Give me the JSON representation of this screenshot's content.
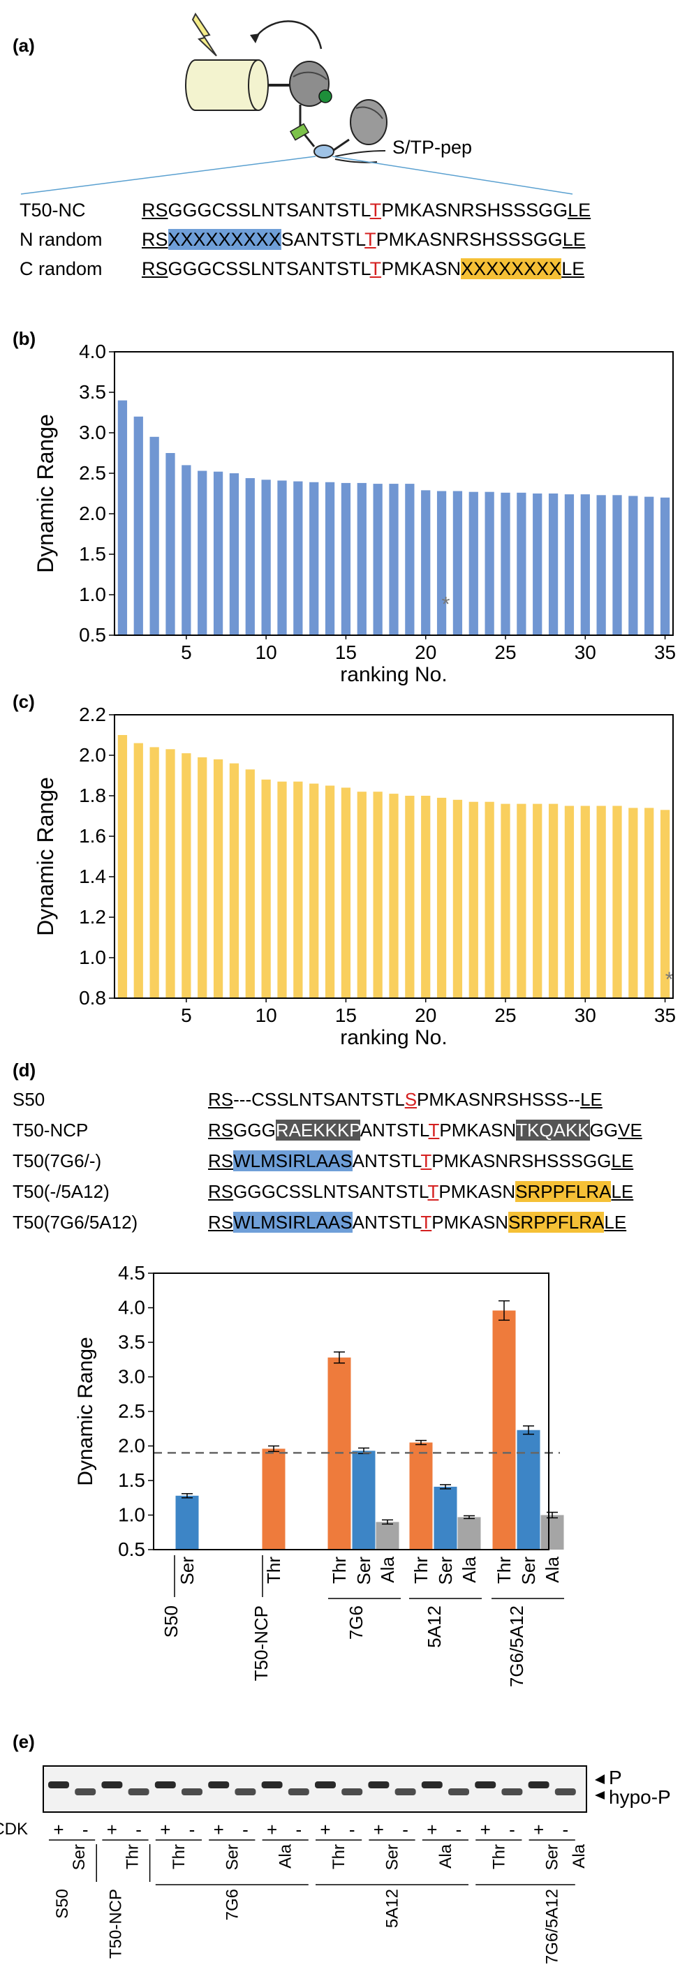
{
  "panel_a": {
    "label": "(a)",
    "pointer_label": "S/TP-pep",
    "rows": [
      {
        "name": "T50-NC",
        "segments": [
          {
            "t": "RS",
            "s": "ul"
          },
          {
            "t": "GGGCSSLNTSANTSTL",
            "s": ""
          },
          {
            "t": "T",
            "s": "red"
          },
          {
            "t": "PMKASNRSHSSSGG",
            "s": ""
          },
          {
            "t": "LE",
            "s": "ul"
          }
        ]
      },
      {
        "name": "N random",
        "segments": [
          {
            "t": "RS",
            "s": "ul"
          },
          {
            "t": "XXXXXXXXX",
            "s": "hl-blue"
          },
          {
            "t": "SANTSTL",
            "s": ""
          },
          {
            "t": "T",
            "s": "red"
          },
          {
            "t": "PMKASNRSHSSSGG",
            "s": ""
          },
          {
            "t": "LE",
            "s": "ul"
          }
        ]
      },
      {
        "name": "C random",
        "segments": [
          {
            "t": "RS",
            "s": "ul"
          },
          {
            "t": "GGGCSSLNTSANTSTL",
            "s": ""
          },
          {
            "t": "T",
            "s": "red"
          },
          {
            "t": "PMKASN",
            "s": ""
          },
          {
            "t": "XXXXXXXX",
            "s": "hl-yellow"
          },
          {
            "t": "LE",
            "s": "ul"
          }
        ]
      }
    ]
  },
  "panel_b": {
    "label": "(b)"
  },
  "panel_c": {
    "label": "(c)"
  },
  "panel_d": {
    "label": "(d)",
    "rows": [
      {
        "name": "S50",
        "segments": [
          {
            "t": "RS",
            "s": "ul"
          },
          {
            "t": "---CSSLNTSANTSTL",
            "s": ""
          },
          {
            "t": "S",
            "s": "red"
          },
          {
            "t": "PMKASNRSHSSS--",
            "s": ""
          },
          {
            "t": "LE",
            "s": "ul"
          }
        ]
      },
      {
        "name": "T50-NCP",
        "segments": [
          {
            "t": "RS",
            "s": "ul"
          },
          {
            "t": "GGG",
            "s": ""
          },
          {
            "t": "RAEKKKP",
            "s": "hl-dark"
          },
          {
            "t": "ANTSTL",
            "s": ""
          },
          {
            "t": "T",
            "s": "red"
          },
          {
            "t": "PMKASN",
            "s": ""
          },
          {
            "t": "TKQAKK",
            "s": "hl-dark"
          },
          {
            "t": "GG",
            "s": ""
          },
          {
            "t": "VE",
            "s": "ul"
          }
        ]
      },
      {
        "name": "T50(7G6/-)",
        "segments": [
          {
            "t": "RS",
            "s": "ul"
          },
          {
            "t": "WLMSIRLAAS",
            "s": "hl-blue"
          },
          {
            "t": "ANTSTL",
            "s": ""
          },
          {
            "t": "T",
            "s": "red"
          },
          {
            "t": "PMKASNRSHSSSGG",
            "s": ""
          },
          {
            "t": "LE",
            "s": "ul"
          }
        ]
      },
      {
        "name": "T50(-/5A12)",
        "segments": [
          {
            "t": "RS",
            "s": "ul"
          },
          {
            "t": "GGGCSSLNTSANTSTL",
            "s": ""
          },
          {
            "t": "T",
            "s": "red"
          },
          {
            "t": "PMKASN",
            "s": ""
          },
          {
            "t": "SRPPFLRA",
            "s": "hl-yellow"
          },
          {
            "t": "LE",
            "s": "ul"
          }
        ]
      },
      {
        "name": "T50(7G6/5A12)",
        "segments": [
          {
            "t": "RS",
            "s": "ul"
          },
          {
            "t": "WLMSIRLAAS",
            "s": "hl-blue"
          },
          {
            "t": "ANTSTL",
            "s": ""
          },
          {
            "t": "T",
            "s": "red"
          },
          {
            "t": "PMKASN",
            "s": ""
          },
          {
            "t": "SRPPFLRA",
            "s": "hl-yellow"
          },
          {
            "t": "LE",
            "s": "ul"
          }
        ]
      }
    ]
  },
  "panel_e": {
    "label": "(e)",
    "band_labels": [
      "P",
      "hypo-P"
    ],
    "cdk_label": "CDK",
    "lanes": [
      "+",
      "-",
      "+",
      "-",
      "+",
      "-",
      "+",
      "-",
      "+",
      "-",
      "+",
      "-",
      "+",
      "-",
      "+",
      "-",
      "+",
      "-",
      "+",
      "-"
    ],
    "residue_labels": [
      "Ser",
      "Thr",
      "Thr",
      "Ser",
      "Ala",
      "Thr",
      "Ser",
      "Ala",
      "Thr",
      "Ser",
      "Ala"
    ],
    "group_labels": [
      "S50",
      "T50-NCP",
      "7G6",
      "5A12",
      "7G6/5A12"
    ]
  },
  "colors": {
    "blue": "#7096d2",
    "yellow": "#f9cf5e",
    "orange": "#ee7b3c",
    "blue_d": "#3d85c6",
    "gray": "#a5a5a5"
  },
  "chart_data": [
    {
      "type": "bar",
      "panel": "b",
      "xlabel": "ranking No.",
      "ylabel": "Dynamic Range",
      "ylim": [
        0.5,
        4.0
      ],
      "yticks": [
        "0.5",
        "1.0",
        "1.5",
        "2.0",
        "2.5",
        "3.0",
        "3.5",
        "4.0"
      ],
      "xticks": [
        "5",
        "10",
        "15",
        "20",
        "25",
        "30",
        "35"
      ],
      "x": [
        1,
        2,
        3,
        4,
        5,
        6,
        7,
        8,
        9,
        10,
        11,
        12,
        13,
        14,
        15,
        16,
        17,
        18,
        19,
        20,
        21,
        22,
        23,
        24,
        25,
        26,
        27,
        28,
        29,
        30,
        31,
        32,
        33,
        34,
        35
      ],
      "values": [
        3.4,
        3.2,
        2.95,
        2.75,
        2.6,
        2.53,
        2.52,
        2.5,
        2.44,
        2.42,
        2.41,
        2.4,
        2.39,
        2.39,
        2.38,
        2.38,
        2.37,
        2.37,
        2.37,
        2.29,
        2.28,
        2.28,
        2.27,
        2.27,
        2.26,
        2.26,
        2.25,
        2.25,
        2.24,
        2.24,
        2.23,
        2.23,
        2.22,
        2.21,
        2.2
      ],
      "annotations": [
        {
          "text": "*",
          "x": 21
        }
      ]
    },
    {
      "type": "bar",
      "panel": "c",
      "xlabel": "ranking No.",
      "ylabel": "Dynamic Range",
      "ylim": [
        0.8,
        2.2
      ],
      "yticks": [
        "0.8",
        "1.0",
        "1.2",
        "1.4",
        "1.6",
        "1.8",
        "2.0",
        "2.2"
      ],
      "xticks": [
        "5",
        "10",
        "15",
        "20",
        "25",
        "30",
        "35"
      ],
      "x": [
        1,
        2,
        3,
        4,
        5,
        6,
        7,
        8,
        9,
        10,
        11,
        12,
        13,
        14,
        15,
        16,
        17,
        18,
        19,
        20,
        21,
        22,
        23,
        24,
        25,
        26,
        27,
        28,
        29,
        30,
        31,
        32,
        33,
        34,
        35
      ],
      "values": [
        2.1,
        2.06,
        2.04,
        2.03,
        2.01,
        1.99,
        1.98,
        1.96,
        1.93,
        1.88,
        1.87,
        1.87,
        1.86,
        1.85,
        1.84,
        1.82,
        1.82,
        1.81,
        1.8,
        1.8,
        1.79,
        1.78,
        1.77,
        1.77,
        1.76,
        1.76,
        1.76,
        1.76,
        1.75,
        1.75,
        1.75,
        1.75,
        1.74,
        1.74,
        1.73
      ],
      "annotations": [
        {
          "text": "*",
          "x": 35
        }
      ]
    },
    {
      "type": "bar",
      "panel": "d",
      "ylabel": "Dynamic Range",
      "ylim": [
        0.5,
        4.5
      ],
      "yticks": [
        "0.5",
        "1.0",
        "1.5",
        "2.0",
        "2.5",
        "3.0",
        "3.5",
        "4.0",
        "4.5"
      ],
      "reference_line": 1.9,
      "bars": [
        {
          "group": "S50",
          "residue": "Ser",
          "value": 1.28,
          "err": 0.03,
          "color": "blue"
        },
        {
          "group": "T50-NCP",
          "residue": "Thr",
          "value": 1.96,
          "err": 0.04,
          "color": "orange"
        },
        {
          "group": "7G6",
          "residue": "Thr",
          "value": 3.28,
          "err": 0.08,
          "color": "orange"
        },
        {
          "group": "7G6",
          "residue": "Ser",
          "value": 1.93,
          "err": 0.04,
          "color": "blue"
        },
        {
          "group": "7G6",
          "residue": "Ala",
          "value": 0.9,
          "err": 0.03,
          "color": "gray"
        },
        {
          "group": "5A12",
          "residue": "Thr",
          "value": 2.05,
          "err": 0.03,
          "color": "orange"
        },
        {
          "group": "5A12",
          "residue": "Ser",
          "value": 1.41,
          "err": 0.03,
          "color": "blue"
        },
        {
          "group": "5A12",
          "residue": "Ala",
          "value": 0.97,
          "err": 0.02,
          "color": "gray"
        },
        {
          "group": "7G6/5A12",
          "residue": "Thr",
          "value": 3.96,
          "err": 0.14,
          "color": "orange"
        },
        {
          "group": "7G6/5A12",
          "residue": "Ser",
          "value": 2.23,
          "err": 0.06,
          "color": "blue"
        },
        {
          "group": "7G6/5A12",
          "residue": "Ala",
          "value": 1.0,
          "err": 0.04,
          "color": "gray"
        }
      ]
    }
  ]
}
